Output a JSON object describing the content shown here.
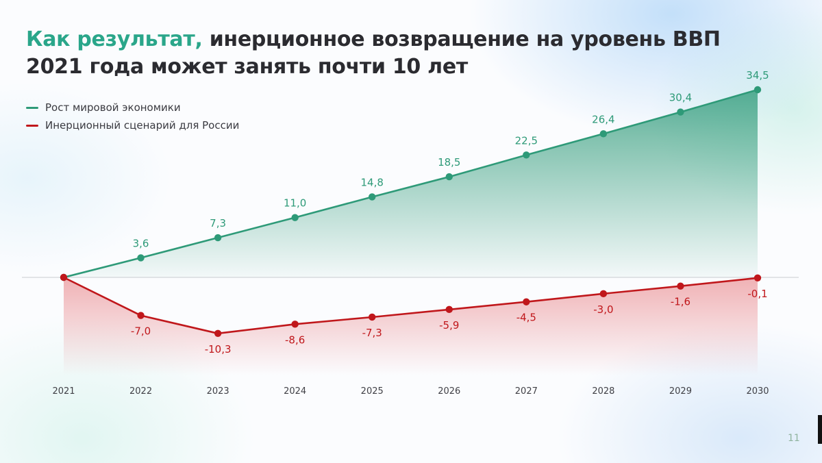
{
  "title": {
    "accent": "Как результат,",
    "rest": " инерционное возвращение на уровень ВВП",
    "line2": "2021 года может занять почти 10 лет"
  },
  "page_number": "11",
  "colors": {
    "accent": "#2aa68a",
    "world": "#2e9a78",
    "russia": "#c0171b"
  },
  "chart_data": {
    "type": "line",
    "x": [
      "2021",
      "2022",
      "2023",
      "2024",
      "2025",
      "2026",
      "2027",
      "2028",
      "2029",
      "2030"
    ],
    "series": [
      {
        "name": "Рост мировой экономики",
        "values": [
          0,
          3.6,
          7.3,
          11.0,
          14.8,
          18.5,
          22.5,
          26.4,
          30.4,
          34.5
        ],
        "labels": [
          "",
          "3,6",
          "7,3",
          "11,0",
          "14,8",
          "18,5",
          "22,5",
          "26,4",
          "30,4",
          "34,5"
        ],
        "color": "#2e9a78"
      },
      {
        "name": "Инерционный сценарий для России",
        "values": [
          0,
          -7.0,
          -10.3,
          -8.6,
          -7.3,
          -5.9,
          -4.5,
          -3.0,
          -1.6,
          -0.1
        ],
        "labels": [
          "",
          "-7,0",
          "-10,3",
          "-8,6",
          "-7,3",
          "-5,9",
          "-4,5",
          "-3,0",
          "-1,6",
          "-0,1"
        ],
        "color": "#c0171b"
      }
    ],
    "ylim": [
      -18,
      34.5
    ],
    "baseline": 0,
    "area_fill": true,
    "legend_position": "top-left",
    "grid": false
  }
}
